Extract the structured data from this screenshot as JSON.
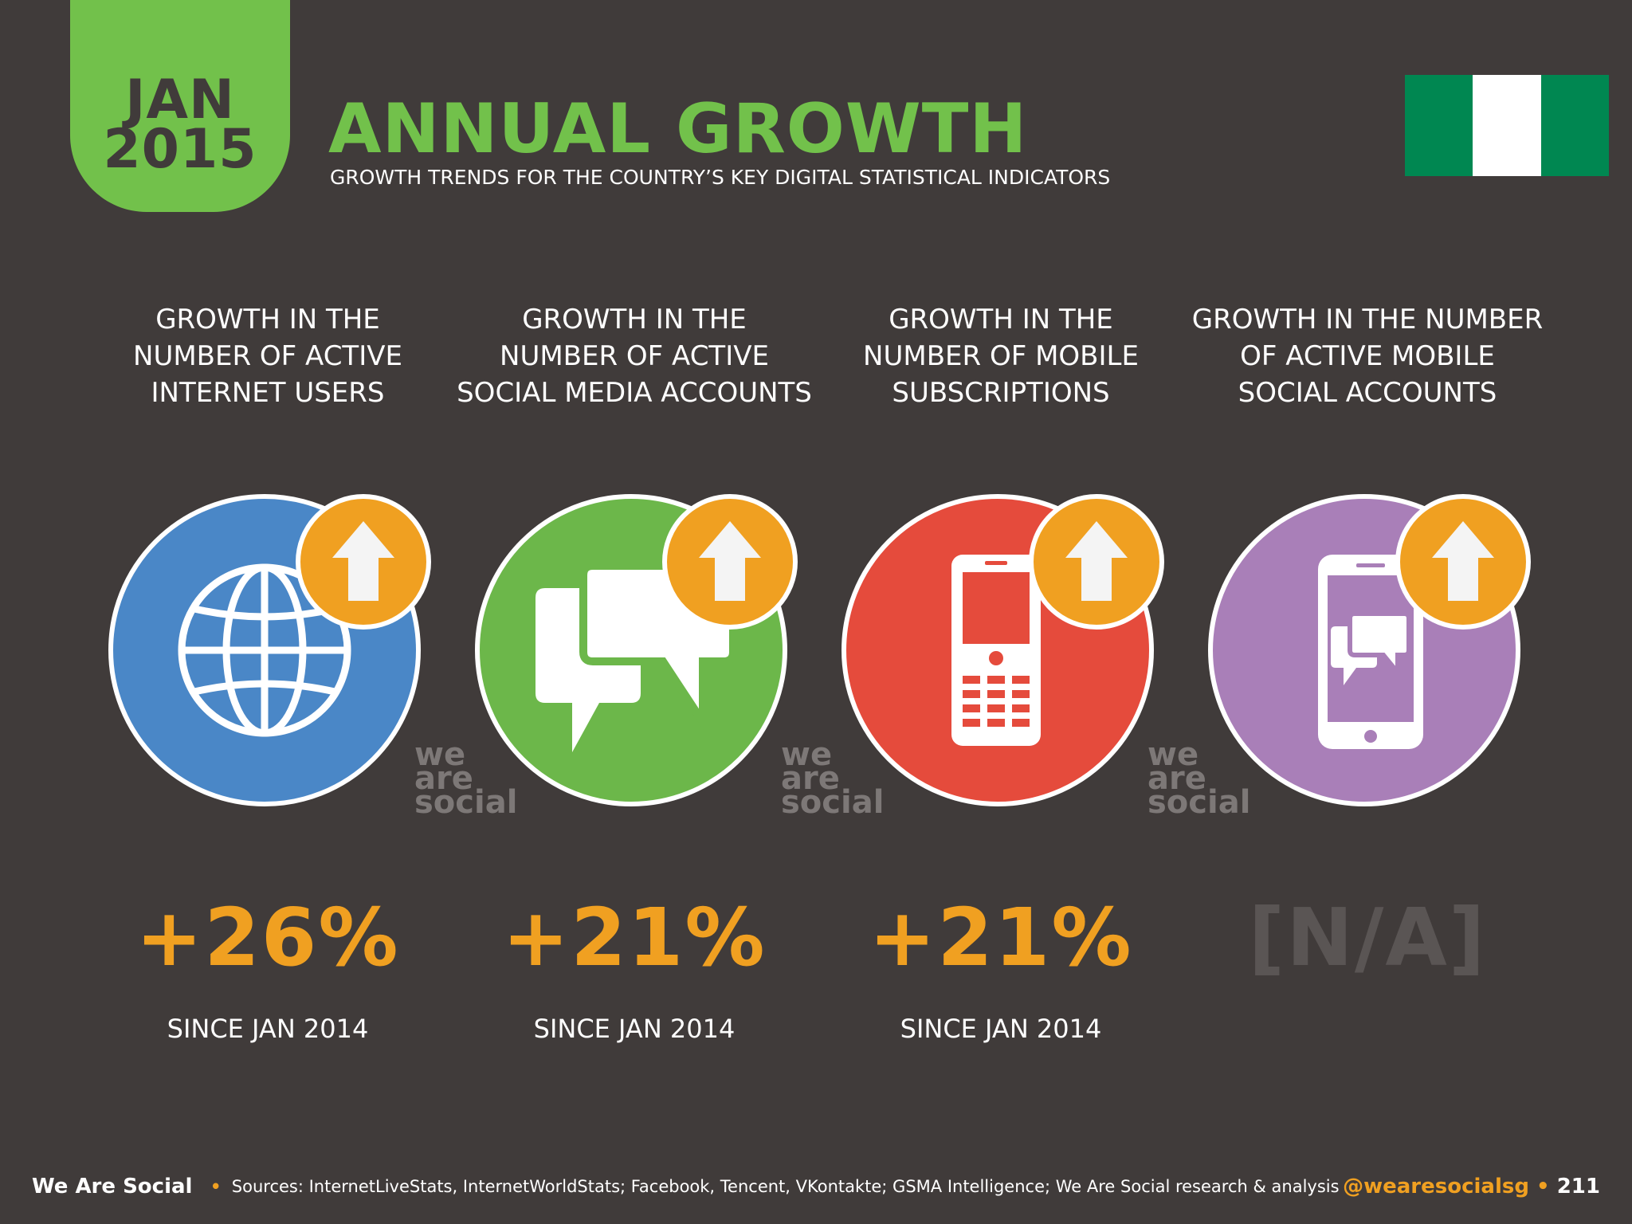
{
  "header": {
    "month": "JAN",
    "year": "2015",
    "title": "ANNUAL GROWTH",
    "subtitle": "GROWTH TRENDS FOR THE COUNTRY’S KEY DIGITAL STATISTICAL INDICATORS"
  },
  "flag": {
    "colors": [
      "#008751",
      "#ffffff",
      "#008751"
    ]
  },
  "watermark": [
    "we",
    "are",
    "social"
  ],
  "indicators": [
    {
      "label": "GROWTH IN THE\nNUMBER OF ACTIVE\nINTERNET USERS",
      "value": "+26%",
      "since": "SINCE JAN 2014",
      "color": "#4a87c7",
      "icon": "globe-icon"
    },
    {
      "label": "GROWTH IN THE\nNUMBER OF ACTIVE\nSOCIAL MEDIA ACCOUNTS",
      "value": "+21%",
      "since": "SINCE JAN 2014",
      "color": "#6cb74a",
      "icon": "speech-bubbles-icon"
    },
    {
      "label": "GROWTH IN THE\nNUMBER OF MOBILE\nSUBSCRIPTIONS",
      "value": "+21%",
      "since": "SINCE JAN 2014",
      "color": "#e54b3c",
      "icon": "mobile-phone-icon"
    },
    {
      "label": "GROWTH IN THE NUMBER\nOF ACTIVE MOBILE\nSOCIAL ACCOUNTS",
      "value": "[N/A]",
      "since": "",
      "color": "#a97fb8",
      "icon": "smartphone-chat-icon"
    }
  ],
  "colors": {
    "accent_orange": "#f0a021",
    "accent_green": "#72c14b",
    "background": "#403b3a"
  },
  "footer": {
    "brand": "We Are Social",
    "sources": "Sources: InternetLiveStats, InternetWorldStats; Facebook, Tencent, VKontakte; GSMA Intelligence; We Are Social research & analysis",
    "handle": "@wearesocialsg",
    "page": "211"
  }
}
